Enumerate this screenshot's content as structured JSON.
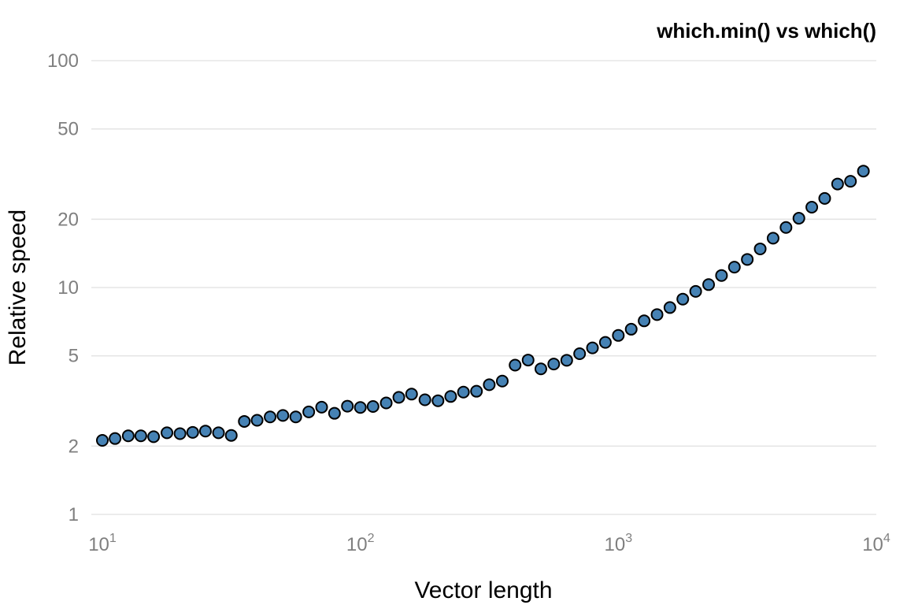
{
  "chart_data": {
    "type": "scatter",
    "title": "which.min() vs which()",
    "xlabel": "Vector length",
    "ylabel": "Relative speed",
    "x_scale": "log10",
    "y_scale": "log10",
    "xlim": [
      10,
      10000
    ],
    "ylim": [
      1,
      100
    ],
    "y_ticks": [
      1,
      2,
      5,
      10,
      20,
      50,
      100
    ],
    "x_ticks": [
      {
        "value": 10,
        "base": "10",
        "exp": "1"
      },
      {
        "value": 100,
        "base": "10",
        "exp": "2"
      },
      {
        "value": 1000,
        "base": "10",
        "exp": "3"
      },
      {
        "value": 10000,
        "base": "10",
        "exp": "4"
      }
    ],
    "grid": true,
    "point_color": "#4682B4",
    "point_stroke": "#000000",
    "points": [
      [
        10,
        2.12
      ],
      [
        11.2,
        2.16
      ],
      [
        12.6,
        2.22
      ],
      [
        14.1,
        2.22
      ],
      [
        15.8,
        2.2
      ],
      [
        17.8,
        2.29
      ],
      [
        20,
        2.27
      ],
      [
        22.4,
        2.3
      ],
      [
        25.1,
        2.33
      ],
      [
        28.2,
        2.29
      ],
      [
        31.6,
        2.23
      ],
      [
        35.5,
        2.57
      ],
      [
        39.8,
        2.6
      ],
      [
        44.7,
        2.69
      ],
      [
        50.1,
        2.73
      ],
      [
        56.2,
        2.69
      ],
      [
        63.1,
        2.83
      ],
      [
        70.8,
        2.97
      ],
      [
        79.4,
        2.79
      ],
      [
        89.1,
        3.0
      ],
      [
        100,
        2.96
      ],
      [
        112,
        2.99
      ],
      [
        126,
        3.1
      ],
      [
        141,
        3.28
      ],
      [
        158,
        3.39
      ],
      [
        178,
        3.2
      ],
      [
        200,
        3.17
      ],
      [
        224,
        3.31
      ],
      [
        251,
        3.46
      ],
      [
        282,
        3.49
      ],
      [
        316,
        3.73
      ],
      [
        355,
        3.87
      ],
      [
        398,
        4.55
      ],
      [
        447,
        4.79
      ],
      [
        501,
        4.38
      ],
      [
        562,
        4.6
      ],
      [
        631,
        4.78
      ],
      [
        708,
        5.11
      ],
      [
        794,
        5.42
      ],
      [
        891,
        5.73
      ],
      [
        1000,
        6.15
      ],
      [
        1122,
        6.55
      ],
      [
        1259,
        7.13
      ],
      [
        1413,
        7.6
      ],
      [
        1585,
        8.16
      ],
      [
        1778,
        8.89
      ],
      [
        1995,
        9.62
      ],
      [
        2239,
        10.3
      ],
      [
        2512,
        11.3
      ],
      [
        2818,
        12.3
      ],
      [
        3162,
        13.3
      ],
      [
        3548,
        14.8
      ],
      [
        3981,
        16.5
      ],
      [
        4467,
        18.4
      ],
      [
        5012,
        20.2
      ],
      [
        5623,
        22.6
      ],
      [
        6310,
        24.7
      ],
      [
        7079,
        28.6
      ],
      [
        7943,
        29.4
      ],
      [
        8913,
        32.6
      ]
    ]
  }
}
